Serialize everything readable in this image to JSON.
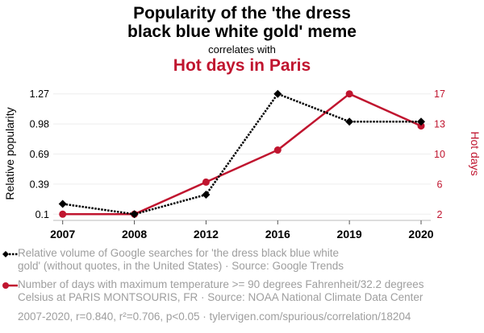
{
  "header": {
    "title_line1": "Popularity of the 'the dress",
    "title_line2": "black blue white gold' meme",
    "correlates": "correlates with",
    "subtitle": "Hot days in Paris"
  },
  "colors": {
    "series1": "#000000",
    "series2": "#c0152f",
    "grid": "#eeeeee",
    "axis": "#bbbbbb",
    "legend_text": "#9e9e9e"
  },
  "legend": {
    "series1": "Relative volume of Google searches for 'the dress black blue white gold' (without quotes, in the United States) · Source: Google Trends",
    "series1_line1": "Relative volume of Google searches for 'the dress black blue white",
    "series1_line2": "gold' (without quotes, in the United States) · Source: Google Trends",
    "series2_line1": "Number of days with maximum temperature >= 90 degrees Fahrenheit/32.2 degrees",
    "series2_line2": "Celsius at PARIS MONTSOURIS, FR · Source: NOAA National Climate Data Center"
  },
  "footer": "2007-2020, r=0.840, r²=0.706, p<0.05 · tylervigen.com/spurious/correlation/18204",
  "chart_data": {
    "type": "line",
    "title": "Popularity of the 'the dress black blue white gold' meme correlates with Hot days in Paris",
    "categories": [
      "2007",
      "2008",
      "2012",
      "2016",
      "2019",
      "2020"
    ],
    "xlabel": "",
    "y_left": {
      "label": "Relative popularity",
      "ticks": [
        "0.1",
        "0.39",
        "0.69",
        "0.98",
        "1.27"
      ],
      "range": [
        0.1,
        1.27
      ]
    },
    "y_right": {
      "label": "Hot days",
      "ticks": [
        "2",
        "6",
        "10",
        "13",
        "17"
      ],
      "range": [
        2,
        17
      ]
    },
    "grid": true,
    "series": [
      {
        "name": "Relative popularity",
        "axis": "left",
        "style": "dotted",
        "marker": "diamond",
        "color": "#000000",
        "values": [
          0.2,
          0.1,
          0.29,
          1.27,
          1.0,
          1.0
        ]
      },
      {
        "name": "Hot days",
        "axis": "right",
        "style": "solid",
        "marker": "circle",
        "color": "#c0152f",
        "values": [
          2,
          2,
          6,
          10,
          17,
          13
        ]
      }
    ],
    "legend_position": "bottom"
  }
}
